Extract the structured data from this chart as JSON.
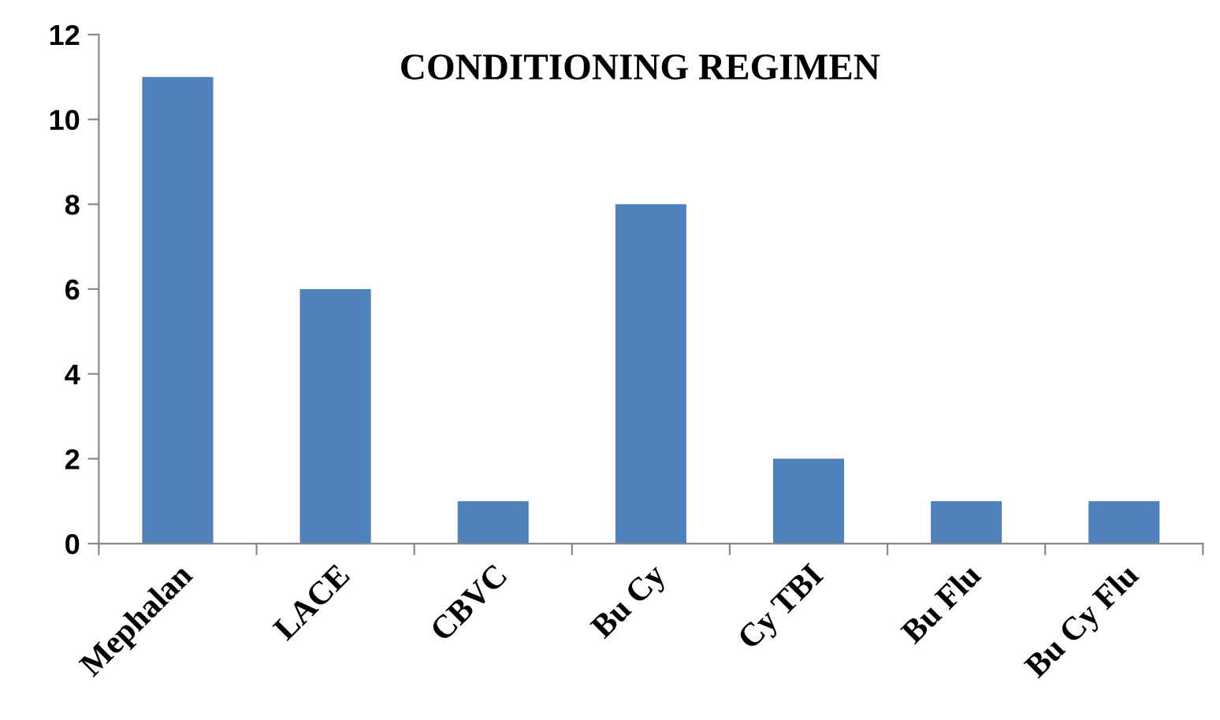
{
  "chart_data": {
    "type": "bar",
    "title": "CONDITIONING REGIMEN",
    "categories": [
      "Mephalan",
      "LACE",
      "CBVC",
      "Bu Cy",
      "Cy TBI",
      "Bu Flu",
      "Bu Cy Flu"
    ],
    "values": [
      11,
      6,
      1,
      8,
      2,
      1,
      1
    ],
    "color": "#4f81bd",
    "ylim": [
      0,
      12
    ],
    "yticks": [
      0,
      2,
      4,
      6,
      8,
      10,
      12
    ],
    "grid": false,
    "legend": false
  }
}
